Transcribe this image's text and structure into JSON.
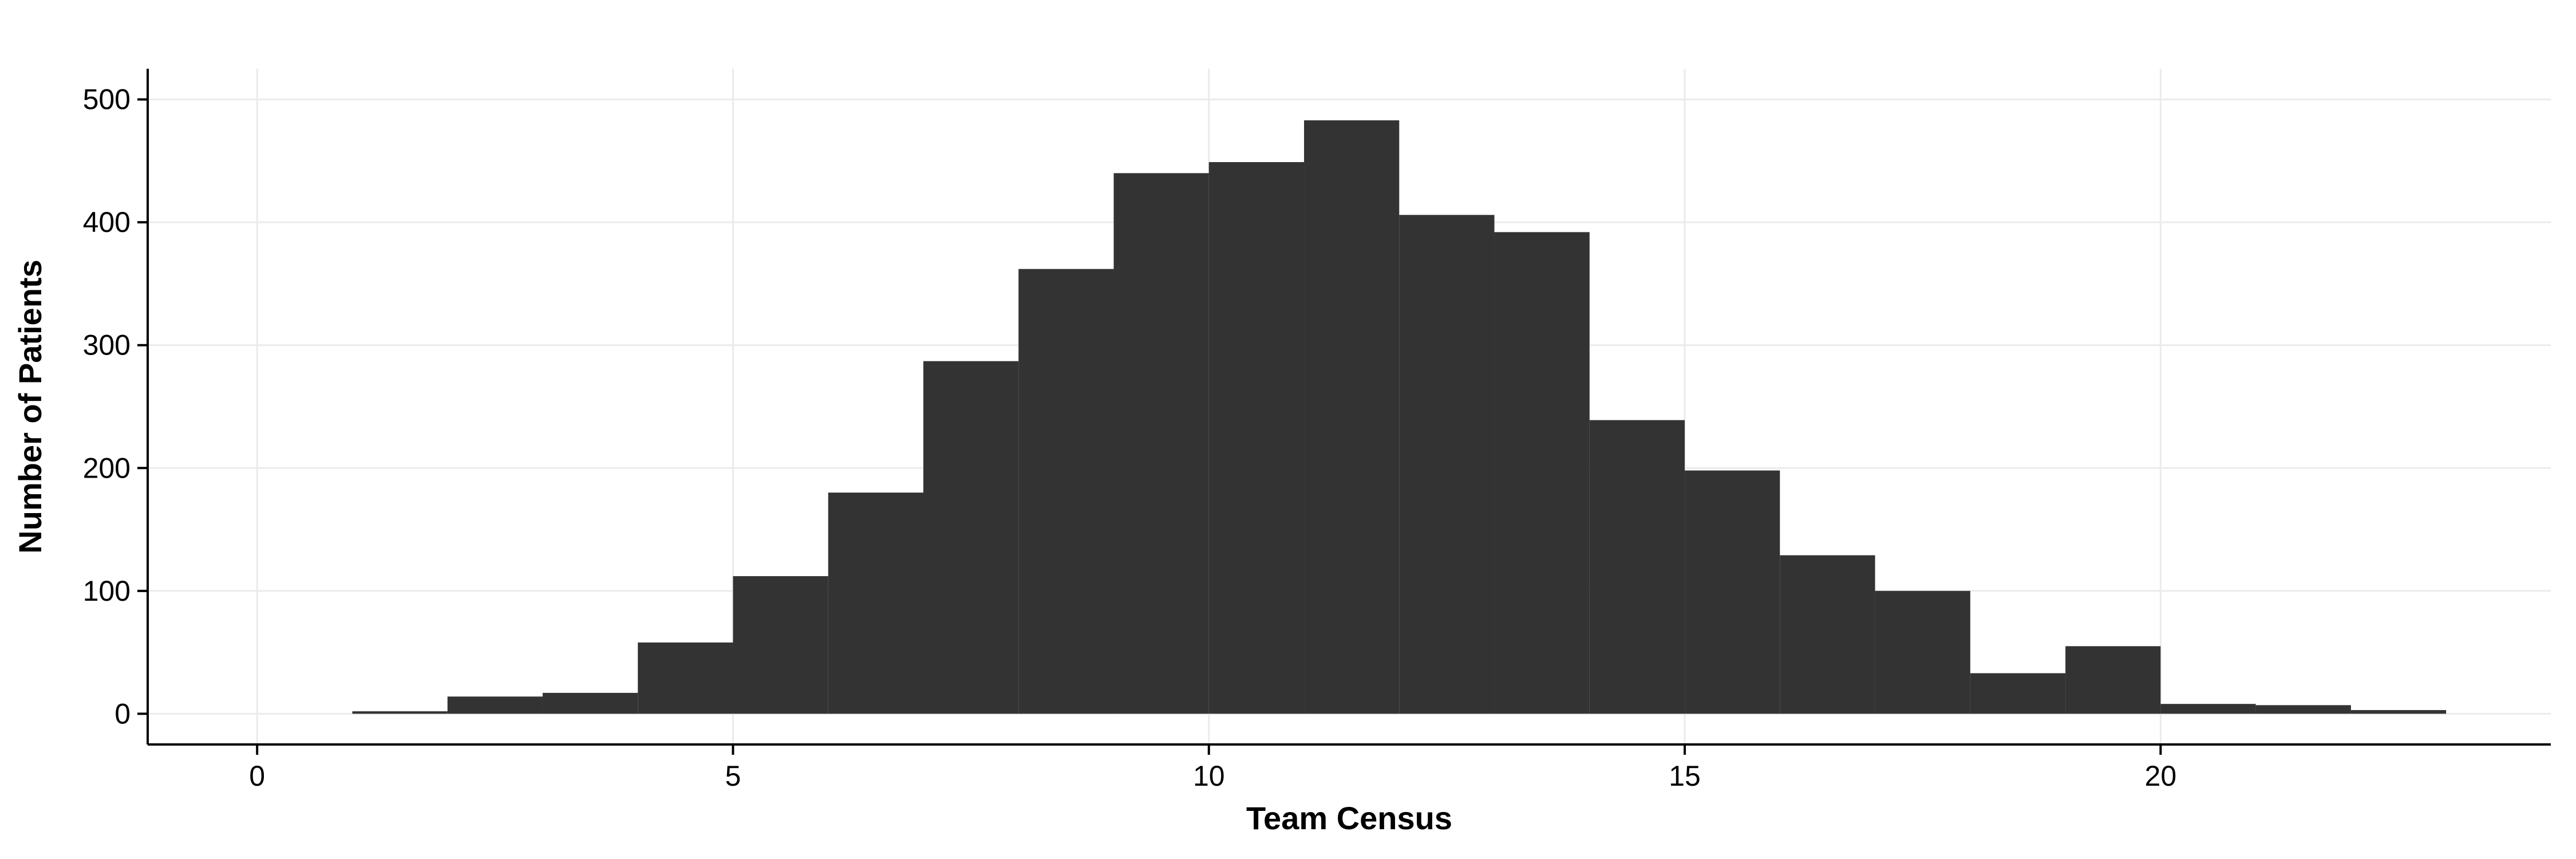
{
  "chart_data": {
    "type": "bar",
    "subtype": "histogram",
    "bin_width": 1,
    "bins": [
      {
        "x0": 1,
        "x1": 2,
        "count": 2
      },
      {
        "x0": 2,
        "x1": 3,
        "count": 14
      },
      {
        "x0": 3,
        "x1": 4,
        "count": 17
      },
      {
        "x0": 4,
        "x1": 5,
        "count": 58
      },
      {
        "x0": 5,
        "x1": 6,
        "count": 112
      },
      {
        "x0": 6,
        "x1": 7,
        "count": 180
      },
      {
        "x0": 7,
        "x1": 8,
        "count": 287
      },
      {
        "x0": 8,
        "x1": 9,
        "count": 362
      },
      {
        "x0": 9,
        "x1": 10,
        "count": 440
      },
      {
        "x0": 10,
        "x1": 11,
        "count": 449
      },
      {
        "x0": 11,
        "x1": 12,
        "count": 483
      },
      {
        "x0": 12,
        "x1": 13,
        "count": 406
      },
      {
        "x0": 13,
        "x1": 14,
        "count": 392
      },
      {
        "x0": 14,
        "x1": 15,
        "count": 239
      },
      {
        "x0": 15,
        "x1": 16,
        "count": 198
      },
      {
        "x0": 16,
        "x1": 17,
        "count": 129
      },
      {
        "x0": 17,
        "x1": 18,
        "count": 100
      },
      {
        "x0": 18,
        "x1": 19,
        "count": 33
      },
      {
        "x0": 19,
        "x1": 20,
        "count": 55
      },
      {
        "x0": 20,
        "x1": 21,
        "count": 8
      },
      {
        "x0": 21,
        "x1": 22,
        "count": 7
      },
      {
        "x0": 22,
        "x1": 23,
        "count": 3
      }
    ],
    "title": "",
    "xlabel": "Team Census",
    "ylabel": "Number of Patients",
    "xlim": [
      -1.15,
      24.1
    ],
    "ylim": [
      -25,
      525
    ],
    "x_ticks": [
      0,
      5,
      10,
      15,
      20
    ],
    "y_ticks": [
      0,
      100,
      200,
      300,
      400,
      500
    ],
    "grid": true,
    "bar_color": "#333333",
    "grid_color": "#ebebeb"
  }
}
